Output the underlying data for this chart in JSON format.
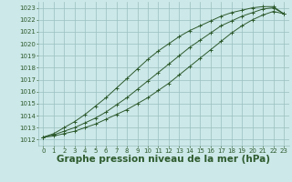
{
  "background_color": "#cce8e8",
  "grid_color": "#9bbfbf",
  "line_color": "#2d5a2d",
  "marker_color": "#2d5a2d",
  "xlabel": "Graphe pression niveau de la mer (hPa)",
  "xlabel_fontsize": 7.5,
  "ylim": [
    1011.5,
    1023.5
  ],
  "xlim": [
    -0.5,
    23.5
  ],
  "yticks": [
    1012,
    1013,
    1014,
    1015,
    1016,
    1017,
    1018,
    1019,
    1020,
    1021,
    1022,
    1023
  ],
  "xticks": [
    0,
    1,
    2,
    3,
    4,
    5,
    6,
    7,
    8,
    9,
    10,
    11,
    12,
    13,
    14,
    15,
    16,
    17,
    18,
    19,
    20,
    21,
    22,
    23
  ],
  "line1": [
    1012.2,
    1012.4,
    1012.7,
    1013.0,
    1013.4,
    1013.8,
    1014.3,
    1014.9,
    1015.5,
    1016.2,
    1016.9,
    1017.6,
    1018.3,
    1019.0,
    1019.7,
    1020.3,
    1020.9,
    1021.5,
    1021.9,
    1022.3,
    1022.6,
    1022.9,
    1023.0,
    1022.5
  ],
  "line2": [
    1012.2,
    1012.5,
    1013.0,
    1013.5,
    1014.1,
    1014.8,
    1015.5,
    1016.3,
    1017.1,
    1017.9,
    1018.7,
    1019.4,
    1020.0,
    1020.6,
    1021.1,
    1021.5,
    1021.9,
    1022.3,
    1022.6,
    1022.8,
    1023.0,
    1023.1,
    1023.1,
    1022.5
  ],
  "line3": [
    1012.2,
    1012.3,
    1012.5,
    1012.7,
    1013.0,
    1013.3,
    1013.7,
    1014.1,
    1014.5,
    1015.0,
    1015.5,
    1016.1,
    1016.7,
    1017.4,
    1018.1,
    1018.8,
    1019.5,
    1020.2,
    1020.9,
    1021.5,
    1022.0,
    1022.4,
    1022.7,
    1022.5
  ]
}
